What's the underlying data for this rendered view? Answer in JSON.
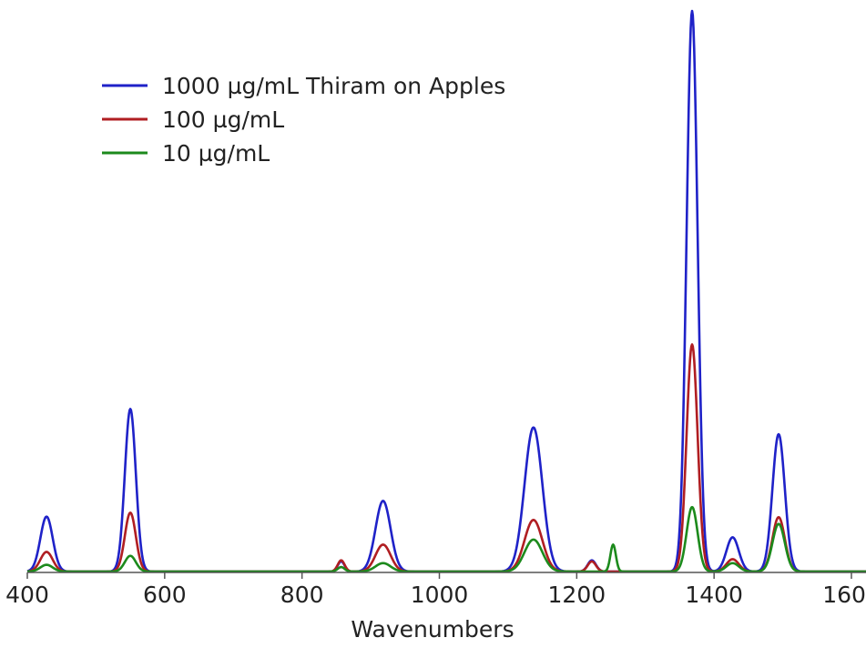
{
  "chart_data": {
    "type": "line",
    "title": "",
    "xlabel": "Wavenumbers",
    "ylabel": "",
    "xlim": [
      400,
      1660
    ],
    "ylim": [
      0,
      1.0
    ],
    "x_ticks": [
      400,
      600,
      800,
      1000,
      1200,
      1400,
      1600
    ],
    "x_tick_labels": [
      "400",
      "600",
      "800",
      "1000",
      "1200",
      "1400",
      "1600"
    ],
    "grid": false,
    "legend_position": "top-left",
    "series": [
      {
        "name": "1000 µg/mL Thiram on Apples",
        "color": "#1f22c8",
        "peaks": [
          {
            "x": 428,
            "y": 0.098,
            "w": 9
          },
          {
            "x": 550,
            "y": 0.29,
            "w": 8
          },
          {
            "x": 857,
            "y": 0.018,
            "w": 5
          },
          {
            "x": 918,
            "y": 0.126,
            "w": 11
          },
          {
            "x": 1137,
            "y": 0.257,
            "w": 13
          },
          {
            "x": 1222,
            "y": 0.02,
            "w": 6
          },
          {
            "x": 1368,
            "y": 1.0,
            "w": 8
          },
          {
            "x": 1427,
            "y": 0.061,
            "w": 9
          },
          {
            "x": 1494,
            "y": 0.245,
            "w": 9
          }
        ]
      },
      {
        "name": "100 µg/mL",
        "color": "#b01e22",
        "peaks": [
          {
            "x": 428,
            "y": 0.035,
            "w": 9
          },
          {
            "x": 550,
            "y": 0.105,
            "w": 8
          },
          {
            "x": 857,
            "y": 0.02,
            "w": 5
          },
          {
            "x": 918,
            "y": 0.048,
            "w": 11
          },
          {
            "x": 1137,
            "y": 0.092,
            "w": 13
          },
          {
            "x": 1222,
            "y": 0.018,
            "w": 6
          },
          {
            "x": 1368,
            "y": 0.405,
            "w": 8
          },
          {
            "x": 1427,
            "y": 0.022,
            "w": 9
          },
          {
            "x": 1494,
            "y": 0.097,
            "w": 9
          }
        ]
      },
      {
        "name": "10 µg/mL",
        "color": "#1c8a1c",
        "peaks": [
          {
            "x": 428,
            "y": 0.012,
            "w": 9
          },
          {
            "x": 550,
            "y": 0.028,
            "w": 8
          },
          {
            "x": 857,
            "y": 0.008,
            "w": 5
          },
          {
            "x": 918,
            "y": 0.015,
            "w": 11
          },
          {
            "x": 1137,
            "y": 0.057,
            "w": 13
          },
          {
            "x": 1253,
            "y": 0.048,
            "w": 4
          },
          {
            "x": 1368,
            "y": 0.115,
            "w": 8
          },
          {
            "x": 1427,
            "y": 0.015,
            "w": 9
          },
          {
            "x": 1494,
            "y": 0.085,
            "w": 9
          }
        ]
      }
    ]
  }
}
